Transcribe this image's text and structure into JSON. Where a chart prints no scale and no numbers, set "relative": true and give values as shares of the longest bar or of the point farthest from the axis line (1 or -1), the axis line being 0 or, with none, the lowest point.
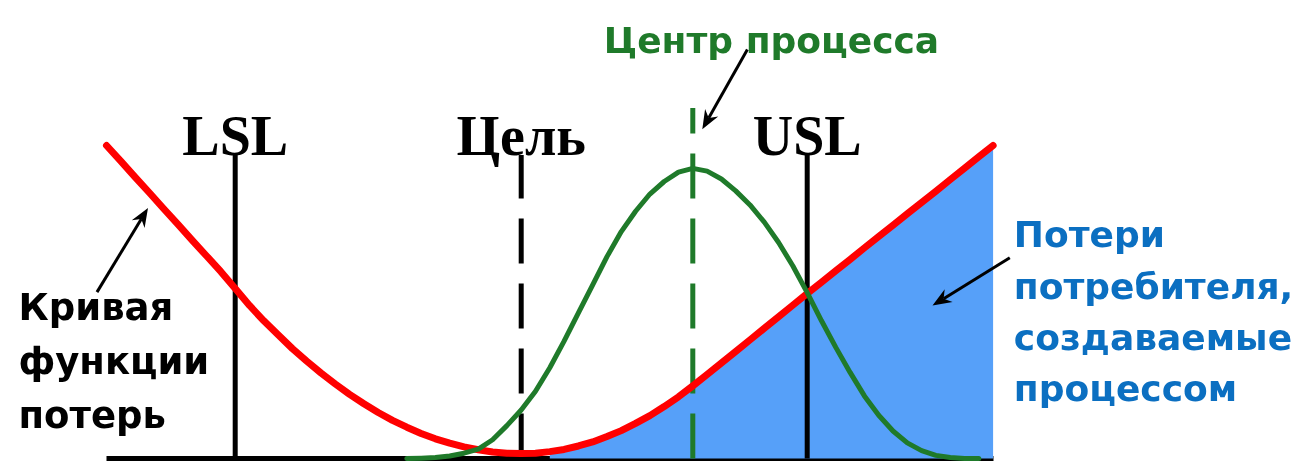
{
  "chart_data": {
    "type": "line",
    "relative": true,
    "categories": [
      null,
      null,
      null,
      null,
      null,
      null,
      null,
      null,
      null,
      null,
      null,
      null,
      null,
      null,
      null,
      null,
      null,
      null,
      null,
      null,
      null,
      null,
      null,
      null,
      null,
      null,
      null,
      null,
      null,
      null,
      null,
      null,
      null,
      null,
      null,
      null,
      null,
      null,
      null,
      null,
      null,
      null,
      null,
      null,
      null,
      null,
      null,
      null,
      null,
      null,
      null,
      null,
      null,
      null,
      null,
      null,
      null,
      null,
      null,
      null,
      null,
      null,
      null
    ],
    "series": [
      {
        "type": "area",
        "name": "Потери потребителя, создаваемые процессом",
        "color": "#56a0f9",
        "values": [
          null,
          null,
          null,
          null,
          null,
          null,
          null,
          null,
          null,
          null,
          null,
          null,
          null,
          null,
          null,
          null,
          null,
          null,
          null,
          null,
          null,
          null,
          null,
          null,
          null,
          null,
          null,
          null,
          null,
          null,
          null,
          0.022,
          0.029,
          0.04,
          0.053,
          0.07,
          0.089,
          0.112,
          0.137,
          0.166,
          0.197,
          0.232,
          0.268,
          0.305,
          0.342,
          0.379,
          0.416,
          0.453,
          0.49,
          0.527,
          0.563,
          0.6,
          0.636,
          0.673,
          0.709,
          0.745,
          0.782,
          0.818,
          0.854,
          0.891,
          0.927,
          0.964,
          1.0
        ]
      },
      {
        "name": "Кривая функции потерь",
        "color": "#ff0000",
        "values": [
          1.0,
          0.95,
          0.899,
          0.849,
          0.798,
          0.748,
          0.697,
          0.647,
          0.597,
          0.543,
          0.489,
          0.44,
          0.395,
          0.351,
          0.311,
          0.273,
          0.238,
          0.205,
          0.175,
          0.147,
          0.122,
          0.1,
          0.08,
          0.063,
          0.049,
          0.037,
          0.028,
          0.021,
          0.017,
          0.016,
          0.017,
          0.022,
          0.029,
          0.04,
          0.053,
          0.07,
          0.089,
          0.112,
          0.137,
          0.166,
          0.197,
          0.232,
          0.268,
          0.305,
          0.342,
          0.379,
          0.416,
          0.453,
          0.49,
          0.527,
          0.563,
          0.6,
          0.636,
          0.673,
          0.709,
          0.745,
          0.782,
          0.818,
          0.854,
          0.891,
          0.927,
          0.964,
          1.0
        ]
      },
      {
        "color": "#1f7a2a",
        "values": [
          null,
          null,
          null,
          null,
          null,
          null,
          null,
          null,
          null,
          null,
          null,
          null,
          null,
          null,
          null,
          null,
          null,
          null,
          null,
          null,
          null,
          0,
          0.001,
          0.003,
          0.008,
          0.017,
          0.03,
          0.06,
          0.105,
          0.155,
          0.215,
          0.29,
          0.375,
          0.465,
          0.555,
          0.645,
          0.725,
          0.79,
          0.845,
          0.885,
          0.915,
          0.927,
          0.918,
          0.893,
          0.855,
          0.81,
          0.755,
          0.69,
          0.615,
          0.53,
          0.44,
          0.355,
          0.275,
          0.2,
          0.138,
          0.088,
          0.05,
          0.025,
          0.01,
          0.003,
          0,
          0,
          null
        ]
      }
    ],
    "annotations": [
      "LSL",
      "Цель",
      "Центр процесса",
      "USL"
    ]
  }
}
